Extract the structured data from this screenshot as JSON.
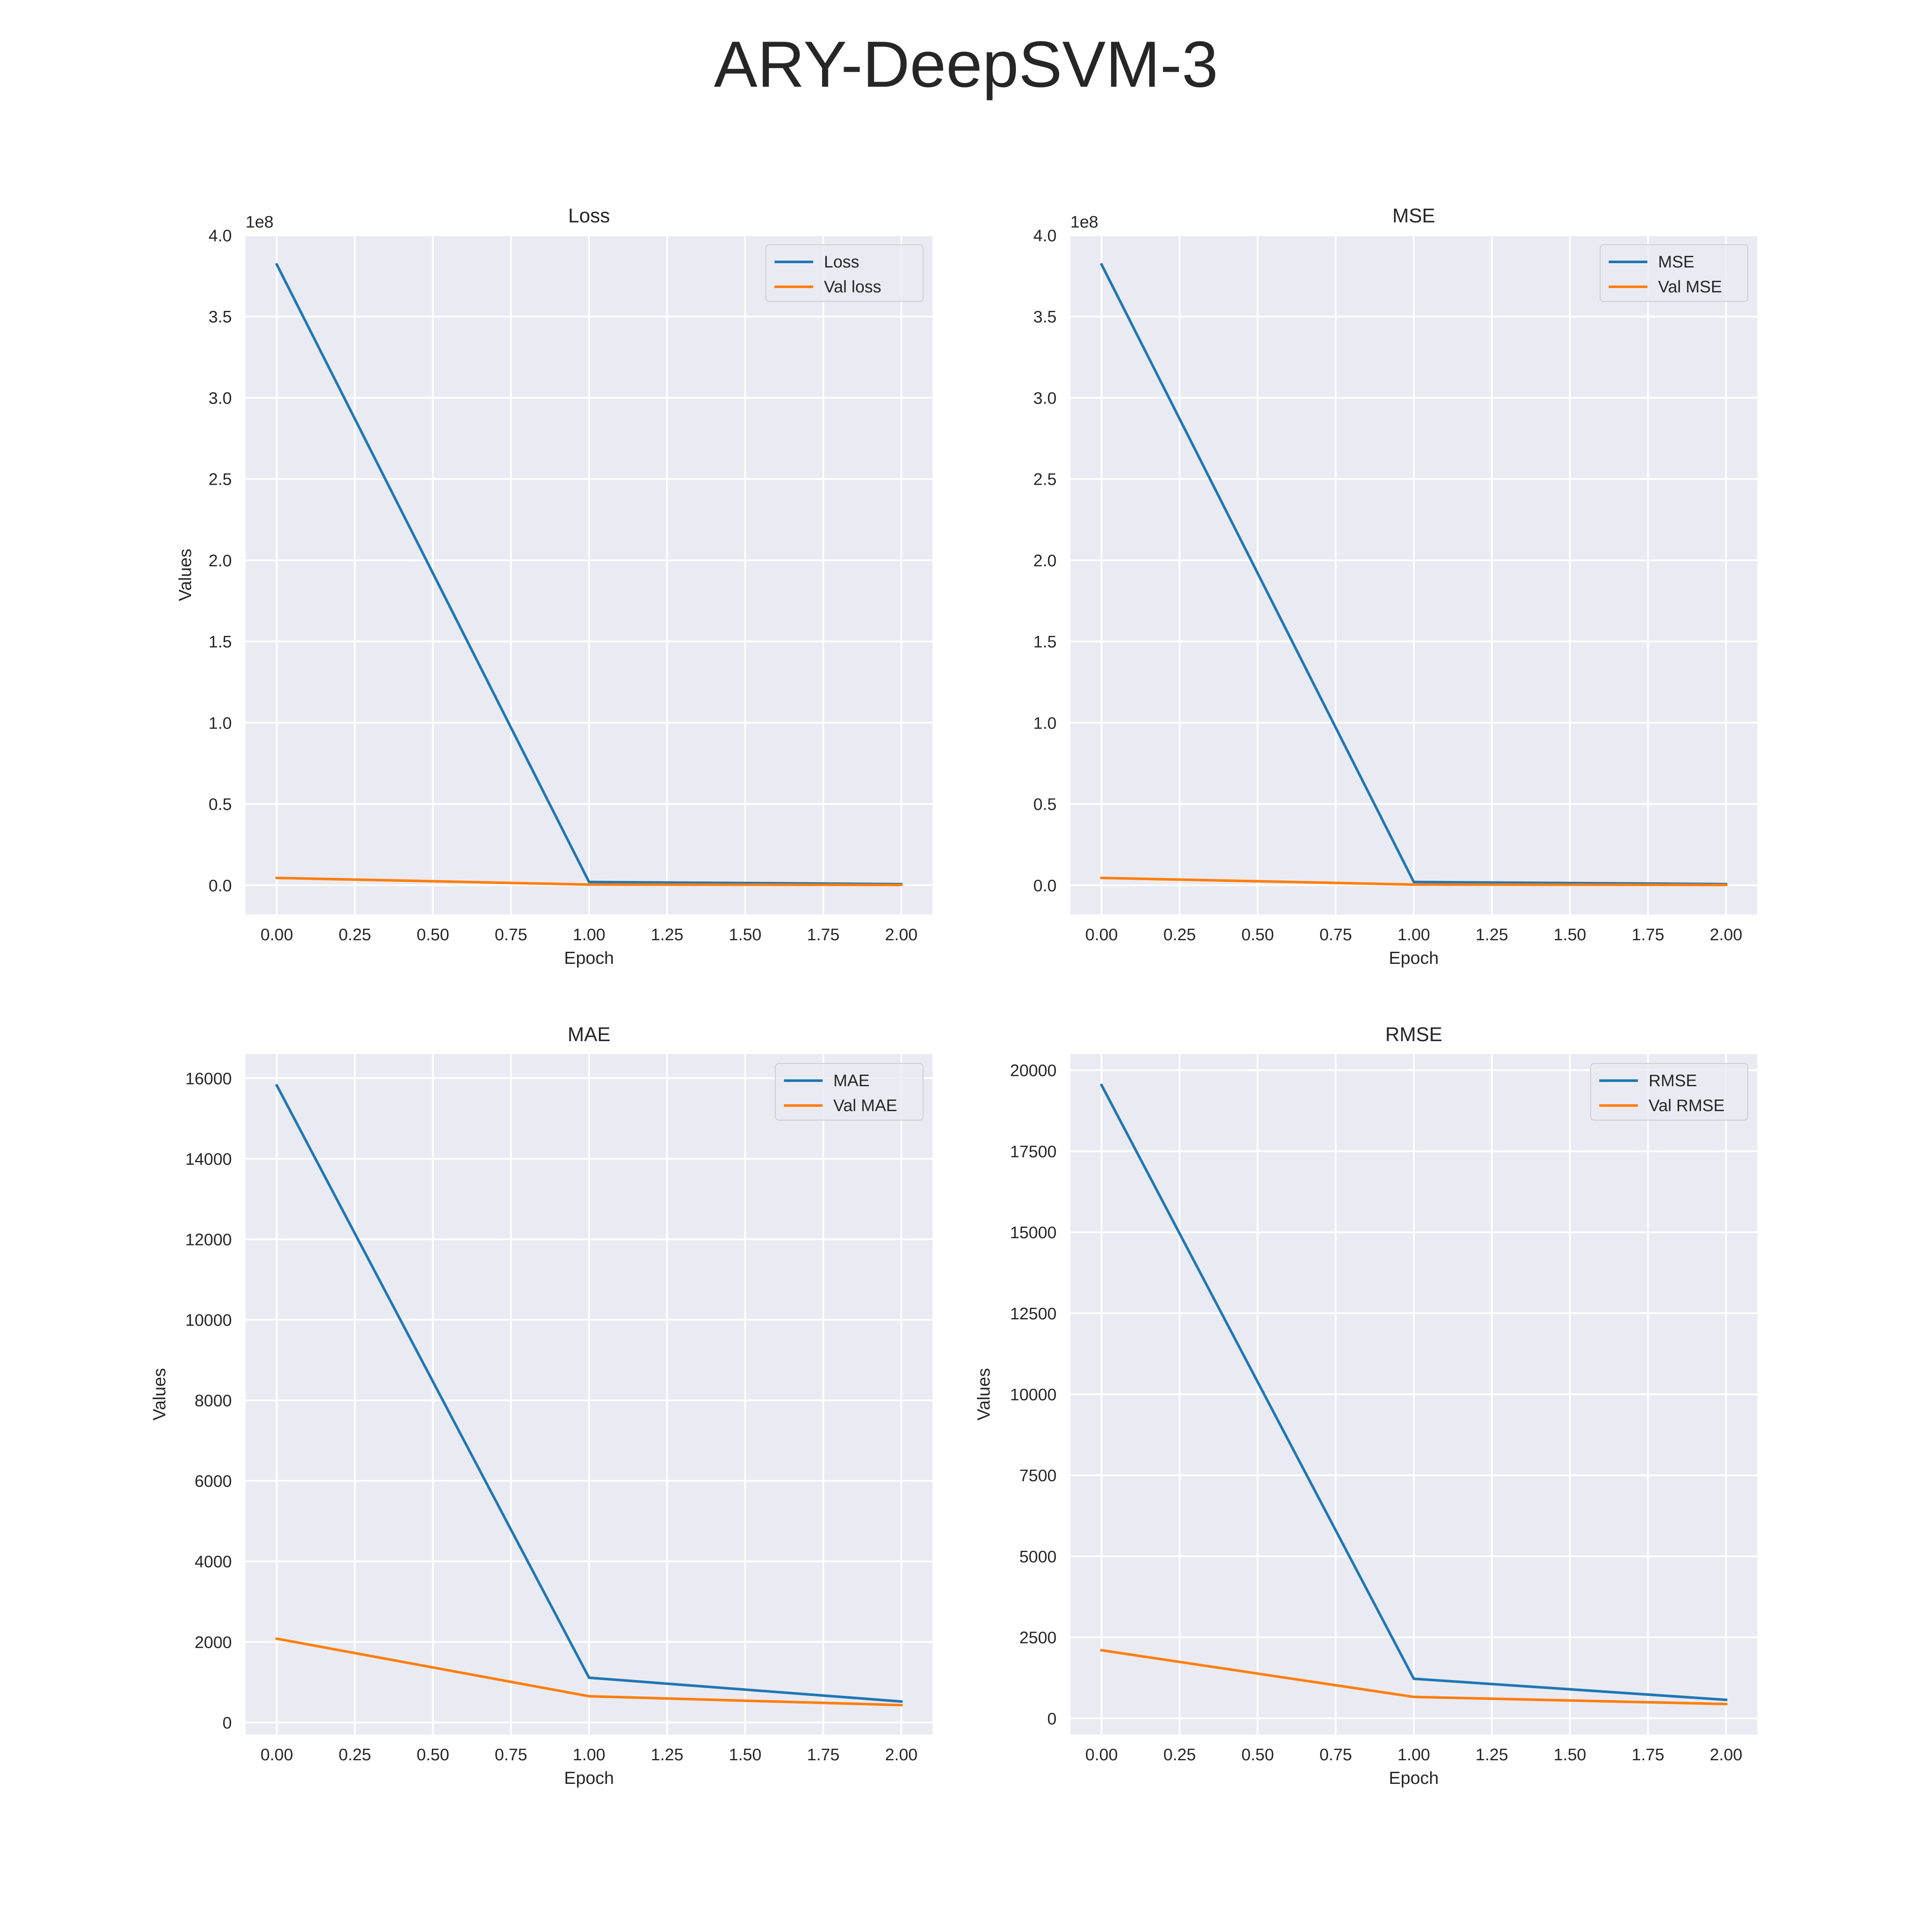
{
  "figure": {
    "title": "ARY-DeepSVM-3"
  },
  "colors": {
    "series1": "#1f77b4",
    "series2": "#ff7f0e",
    "plot_bg": "#eaeaf2",
    "grid": "#ffffff",
    "text": "#262626"
  },
  "chart_data": [
    {
      "type": "line",
      "title": "Loss",
      "xlabel": "Epoch",
      "ylabel": "Values",
      "offset_label": "1e8",
      "x": [
        0,
        1,
        2
      ],
      "xlim": [
        -0.1,
        2.1
      ],
      "ylim": [
        -0.18,
        4.0
      ],
      "xticks": [
        0.0,
        0.25,
        0.5,
        0.75,
        1.0,
        1.25,
        1.5,
        1.75,
        2.0
      ],
      "xtick_labels": [
        "0.00",
        "0.25",
        "0.50",
        "0.75",
        "1.00",
        "1.25",
        "1.50",
        "1.75",
        "2.00"
      ],
      "yticks": [
        0.0,
        0.5,
        1.0,
        1.5,
        2.0,
        2.5,
        3.0,
        3.5,
        4.0
      ],
      "ytick_labels": [
        "0.0",
        "0.5",
        "1.0",
        "1.5",
        "2.0",
        "2.5",
        "3.0",
        "3.5",
        "4.0"
      ],
      "y_scale_note": "values in units of 1e8",
      "series": [
        {
          "name": "Loss",
          "values": [
            3.82,
            0.02,
            0.007
          ]
        },
        {
          "name": "Val loss",
          "values": [
            0.045,
            0.004,
            0.002
          ]
        }
      ],
      "grid": true,
      "legend": "top-right"
    },
    {
      "type": "line",
      "title": "MSE",
      "xlabel": "Epoch",
      "ylabel": "",
      "offset_label": "1e8",
      "x": [
        0,
        1,
        2
      ],
      "xlim": [
        -0.1,
        2.1
      ],
      "ylim": [
        -0.18,
        4.0
      ],
      "xticks": [
        0.0,
        0.25,
        0.5,
        0.75,
        1.0,
        1.25,
        1.5,
        1.75,
        2.0
      ],
      "xtick_labels": [
        "0.00",
        "0.25",
        "0.50",
        "0.75",
        "1.00",
        "1.25",
        "1.50",
        "1.75",
        "2.00"
      ],
      "yticks": [
        0.0,
        0.5,
        1.0,
        1.5,
        2.0,
        2.5,
        3.0,
        3.5,
        4.0
      ],
      "ytick_labels": [
        "0.0",
        "0.5",
        "1.0",
        "1.5",
        "2.0",
        "2.5",
        "3.0",
        "3.5",
        "4.0"
      ],
      "y_scale_note": "values in units of 1e8",
      "series": [
        {
          "name": "MSE",
          "values": [
            3.82,
            0.02,
            0.007
          ]
        },
        {
          "name": "Val MSE",
          "values": [
            0.045,
            0.004,
            0.002
          ]
        }
      ],
      "grid": true,
      "legend": "top-right"
    },
    {
      "type": "line",
      "title": "MAE",
      "xlabel": "Epoch",
      "ylabel": "Values",
      "x": [
        0,
        1,
        2
      ],
      "xlim": [
        -0.1,
        2.1
      ],
      "ylim": [
        -300,
        16600
      ],
      "xticks": [
        0.0,
        0.25,
        0.5,
        0.75,
        1.0,
        1.25,
        1.5,
        1.75,
        2.0
      ],
      "xtick_labels": [
        "0.00",
        "0.25",
        "0.50",
        "0.75",
        "1.00",
        "1.25",
        "1.50",
        "1.75",
        "2.00"
      ],
      "yticks": [
        0,
        2000,
        4000,
        6000,
        8000,
        10000,
        12000,
        14000,
        16000
      ],
      "ytick_labels": [
        "0",
        "2000",
        "4000",
        "6000",
        "8000",
        "10000",
        "12000",
        "14000",
        "16000"
      ],
      "series": [
        {
          "name": "MAE",
          "values": [
            15820,
            1110,
            520
          ]
        },
        {
          "name": "Val MAE",
          "values": [
            2080,
            650,
            430
          ]
        }
      ],
      "grid": true,
      "legend": "top-right"
    },
    {
      "type": "line",
      "title": "RMSE",
      "xlabel": "Epoch",
      "ylabel": "Values",
      "x": [
        0,
        1,
        2
      ],
      "xlim": [
        -0.1,
        2.1
      ],
      "ylim": [
        -500,
        20500
      ],
      "xticks": [
        0.0,
        0.25,
        0.5,
        0.75,
        1.0,
        1.25,
        1.5,
        1.75,
        2.0
      ],
      "xtick_labels": [
        "0.00",
        "0.25",
        "0.50",
        "0.75",
        "1.00",
        "1.25",
        "1.50",
        "1.75",
        "2.00"
      ],
      "yticks": [
        0,
        2500,
        5000,
        7500,
        10000,
        12500,
        15000,
        17500,
        20000
      ],
      "ytick_labels": [
        "0",
        "2500",
        "5000",
        "7500",
        "10000",
        "12500",
        "15000",
        "17500",
        "20000"
      ],
      "series": [
        {
          "name": "RMSE",
          "values": [
            19540,
            1220,
            570
          ]
        },
        {
          "name": "Val RMSE",
          "values": [
            2100,
            660,
            440
          ]
        }
      ],
      "grid": true,
      "legend": "top-right"
    }
  ]
}
